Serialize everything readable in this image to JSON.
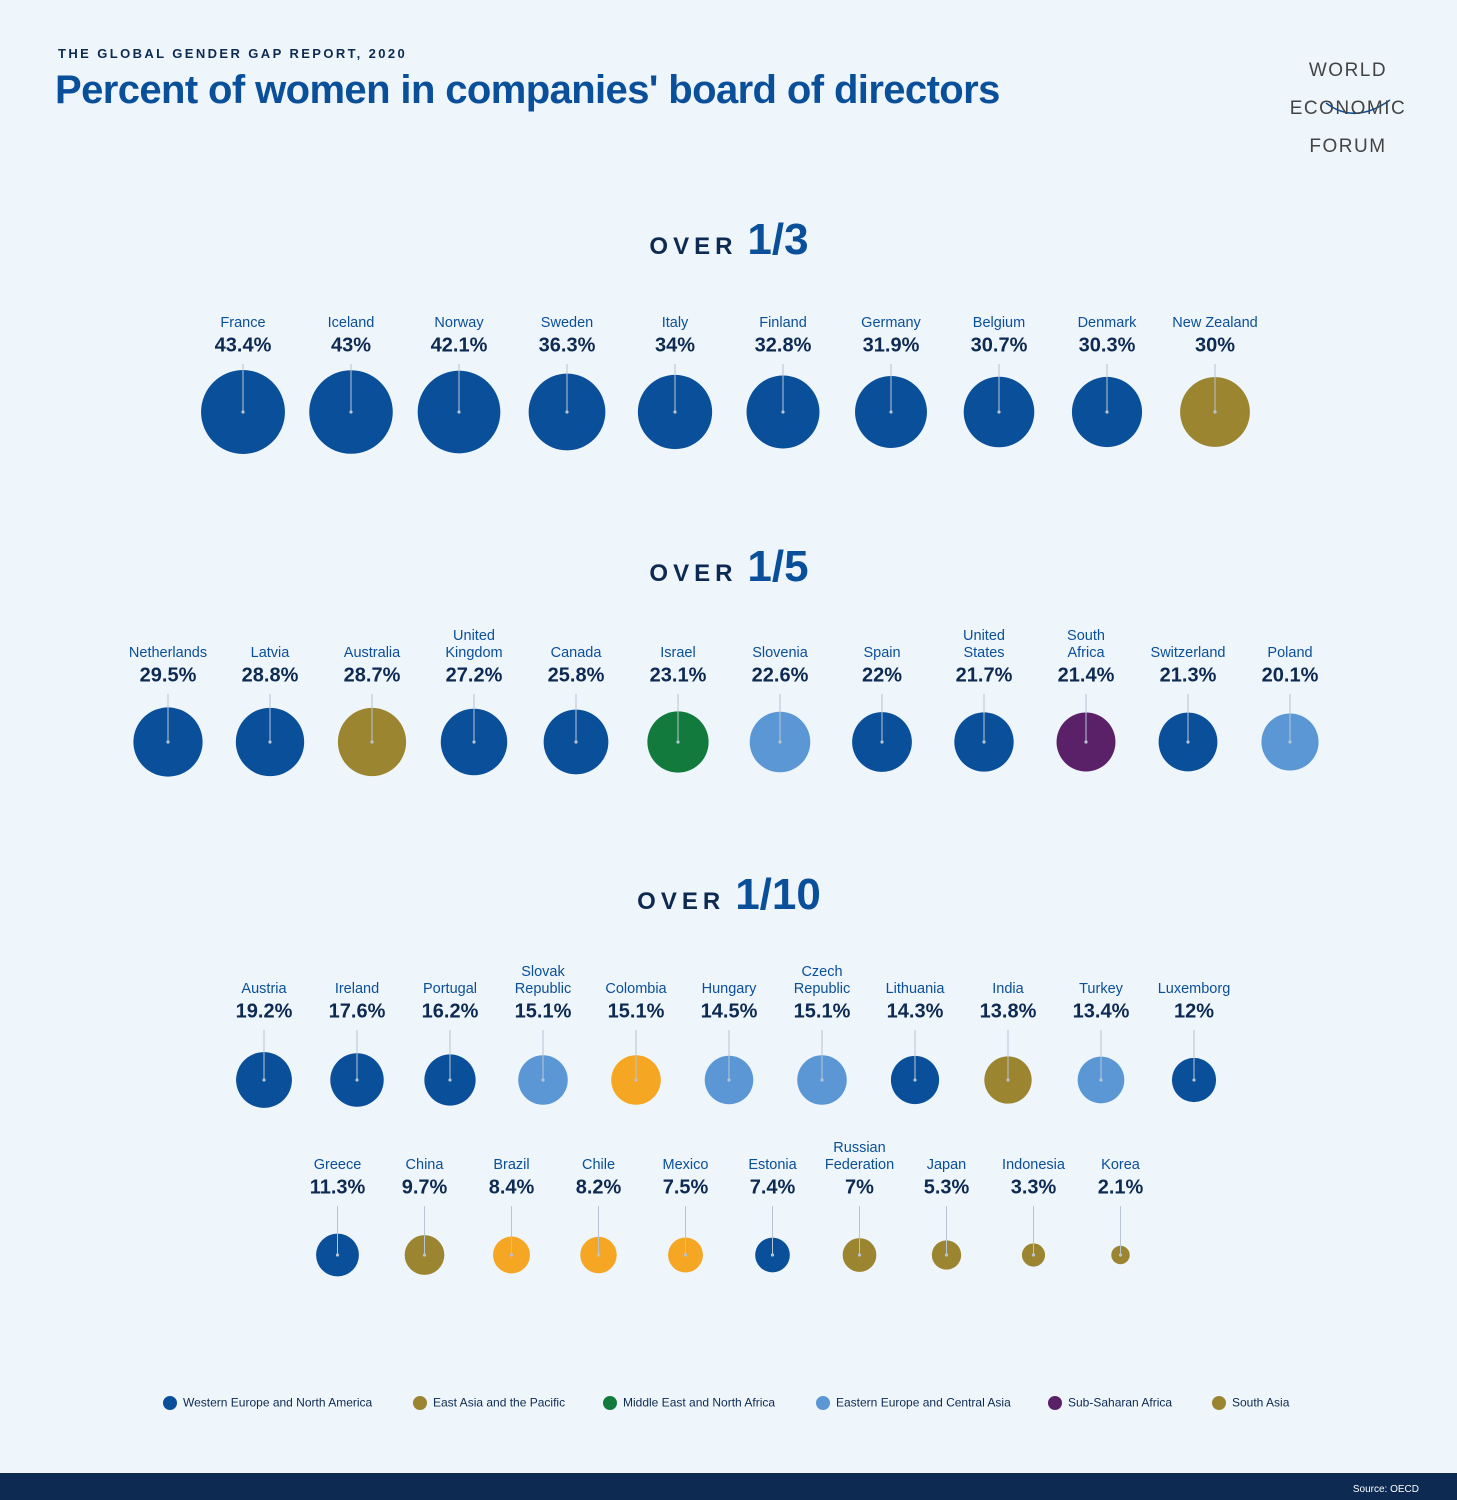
{
  "chart_data": {
    "type": "bubble",
    "subtitle": "THE GLOBAL GENDER GAP REPORT, 2020",
    "title": "Percent of women in companies' board of directors",
    "logo": [
      "WORLD",
      "ECONOMIC",
      "FORUM"
    ],
    "source": "Source: OECD",
    "groups": [
      {
        "prefix": "OVER",
        "fraction": "1/3",
        "rows": [
          {
            "categories": [
              "France",
              "Iceland",
              "Norway",
              "Sweden",
              "Italy",
              "Finland",
              "Germany",
              "Belgium",
              "Denmark",
              "New Zealand"
            ],
            "values": [
              43.4,
              43,
              42.1,
              36.3,
              34,
              32.8,
              31.9,
              30.7,
              30.3,
              30
            ],
            "value_labels": [
              "43.4%",
              "43%",
              "42.1%",
              "36.3%",
              "34%",
              "32.8%",
              "31.9%",
              "30.7%",
              "30.3%",
              "30%"
            ],
            "colors": [
              "#0a4f9a",
              "#0a4f9a",
              "#0a4f9a",
              "#0a4f9a",
              "#0a4f9a",
              "#0a4f9a",
              "#0a4f9a",
              "#0a4f9a",
              "#0a4f9a",
              "#9c8530"
            ]
          }
        ]
      },
      {
        "prefix": "OVER",
        "fraction": "1/5",
        "rows": [
          {
            "categories": [
              "Netherlands",
              "Latvia",
              "Australia",
              "United\nKingdom",
              "Canada",
              "Israel",
              "Slovenia",
              "Spain",
              "United\nStates",
              "South\nAfrica",
              "Switzerland",
              "Poland"
            ],
            "values": [
              29.5,
              28.8,
              28.7,
              27.2,
              25.8,
              23.1,
              22.6,
              22,
              21.7,
              21.4,
              21.3,
              20.1
            ],
            "value_labels": [
              "29.5%",
              "28.8%",
              "28.7%",
              "27.2%",
              "25.8%",
              "23.1%",
              "22.6%",
              "22%",
              "21.7%",
              "21.4%",
              "21.3%",
              "20.1%"
            ],
            "colors": [
              "#0a4f9a",
              "#0a4f9a",
              "#9c8530",
              "#0a4f9a",
              "#0a4f9a",
              "#117a3c",
              "#5b97d5",
              "#0a4f9a",
              "#0a4f9a",
              "#5a2068",
              "#0a4f9a",
              "#5b97d5"
            ]
          }
        ]
      },
      {
        "prefix": "OVER",
        "fraction": "1/10",
        "rows": [
          {
            "categories": [
              "Austria",
              "Ireland",
              "Portugal",
              "Slovak\nRepublic",
              "Colombia",
              "Hungary",
              "Czech\nRepublic",
              "Lithuania",
              "India",
              "Turkey",
              "Luxemborg"
            ],
            "values": [
              19.2,
              17.6,
              16.2,
              15.1,
              15.1,
              14.5,
              15.1,
              14.3,
              13.8,
              13.4,
              12
            ],
            "value_labels": [
              "19.2%",
              "17.6%",
              "16.2%",
              "15.1%",
              "15.1%",
              "14.5%",
              "15.1%",
              "14.3%",
              "13.8%",
              "13.4%",
              "12%"
            ],
            "colors": [
              "#0a4f9a",
              "#0a4f9a",
              "#0a4f9a",
              "#5b97d5",
              "#f5a623",
              "#5b97d5",
              "#5b97d5",
              "#0a4f9a",
              "#9c8530",
              "#5b97d5",
              "#0a4f9a"
            ]
          },
          {
            "categories": [
              "Greece",
              "China",
              "Brazil",
              "Chile",
              "Mexico",
              "Estonia",
              "Russian\nFederation",
              "Japan",
              "Indonesia",
              "Korea"
            ],
            "values": [
              11.3,
              9.7,
              8.4,
              8.2,
              7.5,
              7.4,
              7,
              5.3,
              3.3,
              2.1
            ],
            "value_labels": [
              "11.3%",
              "9.7%",
              "8.4%",
              "8.2%",
              "7.5%",
              "7.4%",
              "7%",
              "5.3%",
              "3.3%",
              "2.1%"
            ],
            "colors": [
              "#0a4f9a",
              "#9c8530",
              "#f5a623",
              "#f5a623",
              "#f5a623",
              "#0a4f9a",
              "#9c8530",
              "#9c8530",
              "#9c8530",
              "#9c8530"
            ]
          }
        ]
      }
    ],
    "legend": [
      {
        "name": "Western Europe and North America",
        "color": "#0a4f9a"
      },
      {
        "name": "East Asia and the Pacific",
        "color": "#9c8530"
      },
      {
        "name": "Middle East and North Africa",
        "color": "#117a3c"
      },
      {
        "name": "Eastern Europe and Central Asia",
        "color": "#5b97d5"
      },
      {
        "name": "Sub-Saharan Africa",
        "color": "#5a2068"
      },
      {
        "name": "South Asia",
        "color": "#9c8530"
      }
    ]
  }
}
